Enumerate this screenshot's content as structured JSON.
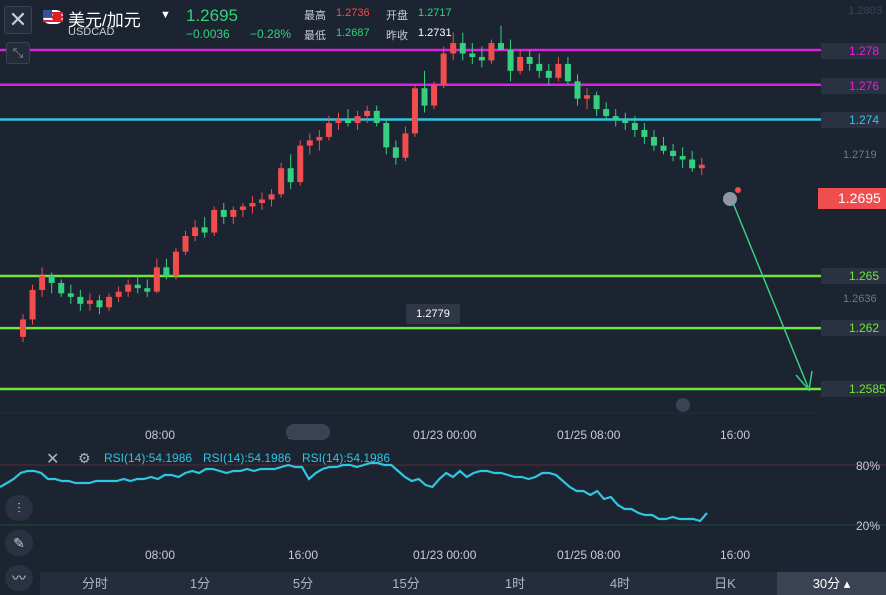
{
  "header": {
    "close_icon": "close-icon",
    "symbol_name": "美元/加元",
    "symbol_code": "USDCAD",
    "price": "1.2695",
    "change": "−0.0036",
    "change_pct": "−0.28%",
    "stats": [
      {
        "label": "最高",
        "value": "1.2736",
        "color": "#f04e4e"
      },
      {
        "label": "开盘",
        "value": "1.2717",
        "color": "#35d07f"
      },
      {
        "label": "最低",
        "value": "1.2687",
        "color": "#35d07f"
      },
      {
        "label": "昨收",
        "value": "1.2731",
        "color": "#ffffff"
      }
    ],
    "top_right_faint": "1.2803"
  },
  "price_lines": [
    {
      "price": 1.278,
      "label": "1.278",
      "color": "#e020e0"
    },
    {
      "price": 1.276,
      "label": "1.276",
      "color": "#e020e0"
    },
    {
      "price": 1.274,
      "label": "1.274",
      "color": "#2ec6e0"
    },
    {
      "price": 1.265,
      "label": "1.265",
      "color": "#6ee83a"
    },
    {
      "price": 1.262,
      "label": "1.262",
      "color": "#6ee83a"
    },
    {
      "price": 1.2585,
      "label": "1.2585",
      "color": "#6ee83a"
    }
  ],
  "axis_labels": [
    "1.2719",
    "1.2636"
  ],
  "current_price_tag": "1.2695",
  "tooltip_price": "1.2779",
  "time_labels": [
    "08:00",
    "16:00",
    "01/23 00:00",
    "01/25 08:00",
    "16:00"
  ],
  "rsi": {
    "labels": [
      "RSI(14):54.1986",
      "RSI(14):54.1986",
      "RSI(14):54.1986"
    ],
    "levels": [
      "80%",
      "20%"
    ],
    "values": [
      58,
      62,
      66,
      72,
      74,
      74,
      72,
      66,
      66,
      64,
      64,
      62,
      62,
      62,
      64,
      64,
      64,
      64,
      66,
      64,
      66,
      66,
      68,
      66,
      70,
      70,
      68,
      72,
      74,
      72,
      76,
      76,
      74,
      72,
      74,
      74,
      76,
      74,
      76,
      76,
      76,
      78,
      80,
      78,
      78,
      66,
      72,
      76,
      78,
      78,
      80,
      80,
      78,
      80,
      82,
      82,
      80,
      80,
      74,
      68,
      64,
      66,
      60,
      58,
      66,
      72,
      68,
      74,
      68,
      72,
      74,
      74,
      72,
      72,
      70,
      68,
      68,
      66,
      68,
      72,
      72,
      70,
      64,
      58,
      54,
      54,
      50,
      54,
      46,
      48,
      40,
      36,
      36,
      32,
      30,
      30,
      26,
      26,
      28,
      26,
      26,
      26,
      24,
      32
    ]
  },
  "chart_data": {
    "type": "candlestick",
    "symbol": "USDCAD",
    "ohlc": [
      [
        1.2615,
        1.2628,
        1.2612,
        1.2625
      ],
      [
        1.2625,
        1.2645,
        1.2622,
        1.2642
      ],
      [
        1.2642,
        1.2655,
        1.2638,
        1.265
      ],
      [
        1.265,
        1.2652,
        1.264,
        1.2646
      ],
      [
        1.2646,
        1.2648,
        1.2638,
        1.264
      ],
      [
        1.264,
        1.2645,
        1.2634,
        1.2638
      ],
      [
        1.2638,
        1.2642,
        1.263,
        1.2634
      ],
      [
        1.2634,
        1.264,
        1.263,
        1.2636
      ],
      [
        1.2636,
        1.2639,
        1.2628,
        1.2632
      ],
      [
        1.2632,
        1.264,
        1.263,
        1.2638
      ],
      [
        1.2638,
        1.2644,
        1.2635,
        1.2641
      ],
      [
        1.2641,
        1.2648,
        1.2638,
        1.2645
      ],
      [
        1.2645,
        1.265,
        1.264,
        1.2643
      ],
      [
        1.2643,
        1.2648,
        1.2638,
        1.2641
      ],
      [
        1.2641,
        1.266,
        1.264,
        1.2655
      ],
      [
        1.2655,
        1.266,
        1.2648,
        1.265
      ],
      [
        1.265,
        1.2666,
        1.2648,
        1.2664
      ],
      [
        1.2664,
        1.2676,
        1.2662,
        1.2673
      ],
      [
        1.2673,
        1.2682,
        1.267,
        1.2678
      ],
      [
        1.2678,
        1.2684,
        1.2672,
        1.2675
      ],
      [
        1.2675,
        1.269,
        1.2673,
        1.2688
      ],
      [
        1.2688,
        1.2692,
        1.268,
        1.2684
      ],
      [
        1.2684,
        1.269,
        1.268,
        1.2688
      ],
      [
        1.2688,
        1.2692,
        1.2684,
        1.269
      ],
      [
        1.269,
        1.2696,
        1.2686,
        1.2692
      ],
      [
        1.2692,
        1.2698,
        1.2688,
        1.2694
      ],
      [
        1.2694,
        1.27,
        1.269,
        1.2697
      ],
      [
        1.2697,
        1.2715,
        1.2695,
        1.2712
      ],
      [
        1.2712,
        1.272,
        1.27,
        1.2704
      ],
      [
        1.2704,
        1.2728,
        1.2702,
        1.2725
      ],
      [
        1.2725,
        1.2732,
        1.272,
        1.2728
      ],
      [
        1.2728,
        1.2734,
        1.2722,
        1.273
      ],
      [
        1.273,
        1.2742,
        1.2728,
        1.2738
      ],
      [
        1.2738,
        1.2744,
        1.2734,
        1.274
      ],
      [
        1.274,
        1.2746,
        1.2736,
        1.2738
      ],
      [
        1.2738,
        1.2745,
        1.2734,
        1.2742
      ],
      [
        1.2742,
        1.2748,
        1.2738,
        1.2745
      ],
      [
        1.2745,
        1.2748,
        1.2736,
        1.2738
      ],
      [
        1.2738,
        1.274,
        1.272,
        1.2724
      ],
      [
        1.2724,
        1.2728,
        1.2714,
        1.2718
      ],
      [
        1.2718,
        1.2736,
        1.2716,
        1.2732
      ],
      [
        1.2732,
        1.276,
        1.273,
        1.2758
      ],
      [
        1.2758,
        1.2768,
        1.2744,
        1.2748
      ],
      [
        1.2748,
        1.2762,
        1.2746,
        1.276
      ],
      [
        1.276,
        1.2782,
        1.2758,
        1.2778
      ],
      [
        1.2778,
        1.279,
        1.2774,
        1.2784
      ],
      [
        1.2784,
        1.279,
        1.2774,
        1.2778
      ],
      [
        1.2778,
        1.2784,
        1.2772,
        1.2776
      ],
      [
        1.2776,
        1.2782,
        1.277,
        1.2774
      ],
      [
        1.2774,
        1.2786,
        1.2772,
        1.2784
      ],
      [
        1.2784,
        1.2794,
        1.2782,
        1.278
      ],
      [
        1.278,
        1.2786,
        1.2762,
        1.2768
      ],
      [
        1.2768,
        1.278,
        1.2766,
        1.2776
      ],
      [
        1.2776,
        1.278,
        1.2768,
        1.2772
      ],
      [
        1.2772,
        1.2778,
        1.2764,
        1.2768
      ],
      [
        1.2768,
        1.2772,
        1.276,
        1.2764
      ],
      [
        1.2764,
        1.2776,
        1.2762,
        1.2772
      ],
      [
        1.2772,
        1.2776,
        1.276,
        1.2762
      ],
      [
        1.2762,
        1.2766,
        1.2748,
        1.2752
      ],
      [
        1.2752,
        1.2758,
        1.2746,
        1.2754
      ],
      [
        1.2754,
        1.2756,
        1.2742,
        1.2746
      ],
      [
        1.2746,
        1.275,
        1.274,
        1.2742
      ],
      [
        1.2742,
        1.2746,
        1.2736,
        1.274
      ],
      [
        1.274,
        1.2744,
        1.2734,
        1.2738
      ],
      [
        1.2738,
        1.2742,
        1.273,
        1.2734
      ],
      [
        1.2734,
        1.2738,
        1.2726,
        1.273
      ],
      [
        1.273,
        1.2734,
        1.2722,
        1.2725
      ],
      [
        1.2725,
        1.273,
        1.272,
        1.2722
      ],
      [
        1.2722,
        1.2726,
        1.2716,
        1.2719
      ],
      [
        1.2719,
        1.2724,
        1.2712,
        1.2717
      ],
      [
        1.2717,
        1.2722,
        1.271,
        1.2712
      ],
      [
        1.2712,
        1.2718,
        1.2708,
        1.2714
      ]
    ],
    "ylim": [
      1.2585,
      1.2803
    ]
  },
  "tabs": [
    "分时",
    "1分",
    "5分",
    "15分",
    "1时",
    "4时",
    "日K",
    "30分"
  ],
  "active_tab": "30分",
  "colors": {
    "up": "#f04e4e",
    "down": "#35d07f",
    "rsi": "#2ec6e0",
    "arrow": "#35d07f"
  }
}
